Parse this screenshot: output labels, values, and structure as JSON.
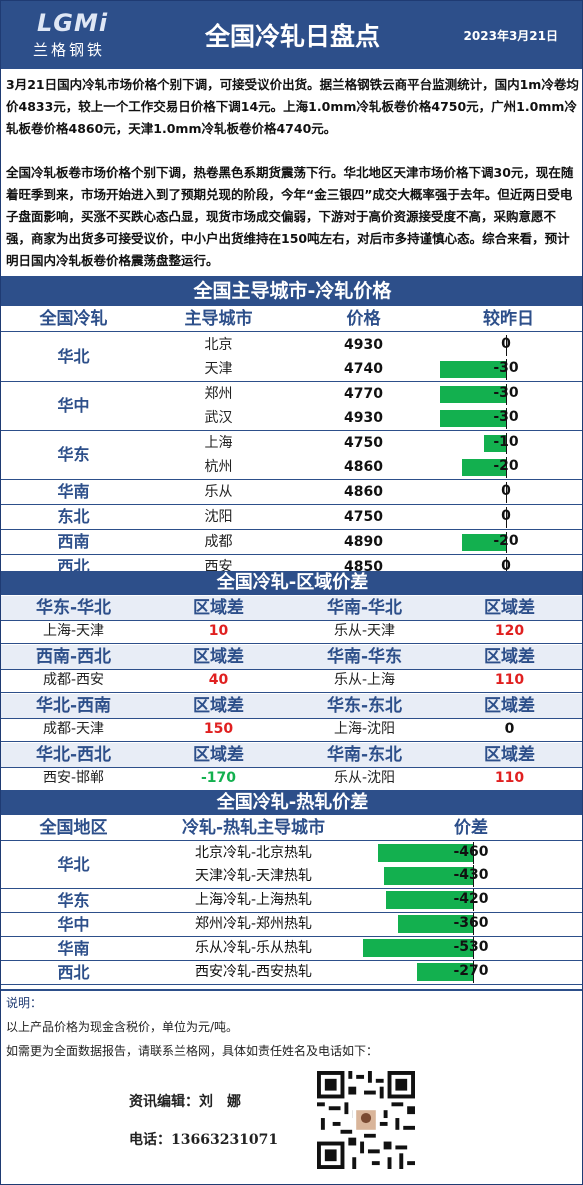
{
  "header": {
    "logo_text": "LGMi",
    "logo_cn": "兰格钢铁",
    "title": "全国冷轧日盘点",
    "date": "2023年3月21日"
  },
  "summary": {
    "p1": "3月21日国内冷轧市场价格个别下调，可接受议价出货。据兰格钢铁云商平台监测统计，国内1m冷卷均价4833元，较上一个工作交易日价格下调14元。上海1.0mm冷轧板卷价格4750元，广州1.0mm冷轧板卷价格4860元，天津1.0mm冷轧板卷价格4740元。",
    "p2": "全国冷轧板卷市场价格个别下调，热卷黑色系期货震荡下行。华北地区天津市场价格下调30元，现在随着旺季到来，市场开始进入到了预期兑现的阶段，今年“金三银四”成交大概率强于去年。但近两日受电子盘面影响，买涨不买跌心态凸显，现货市场成交偏弱，下游对于高价资源接受度不高，采购意愿不强，商家为出货多可接受议价，中小户出货维持在150吨左右，对后市多持谨慎心态。综合来看，预计明日国内冷轧板卷价格震荡盘整运行。"
  },
  "table1": {
    "title": "全国主导城市-冷轧价格",
    "headers": [
      "全国冷轧",
      "主导城市",
      "价格",
      "较昨日"
    ],
    "groups": [
      {
        "region": "华北",
        "rows": [
          {
            "city": "北京",
            "price": "4930",
            "change": "0",
            "change_value": 0
          },
          {
            "city": "天津",
            "price": "4740",
            "change": "-30",
            "change_value": -30
          }
        ]
      },
      {
        "region": "华中",
        "rows": [
          {
            "city": "郑州",
            "price": "4770",
            "change": "-30",
            "change_value": -30
          },
          {
            "city": "武汉",
            "price": "4930",
            "change": "-30",
            "change_value": -30
          }
        ]
      },
      {
        "region": "华东",
        "rows": [
          {
            "city": "上海",
            "price": "4750",
            "change": "-10",
            "change_value": -10
          },
          {
            "city": "杭州",
            "price": "4860",
            "change": "-20",
            "change_value": -20
          }
        ]
      },
      {
        "region": "华南",
        "rows": [
          {
            "city": "乐从",
            "price": "4860",
            "change": "0",
            "change_value": 0
          }
        ]
      },
      {
        "region": "东北",
        "rows": [
          {
            "city": "沈阳",
            "price": "4750",
            "change": "0",
            "change_value": 0
          }
        ]
      },
      {
        "region": "西南",
        "rows": [
          {
            "city": "成都",
            "price": "4890",
            "change": "-20",
            "change_value": -20
          }
        ]
      },
      {
        "region": "西北",
        "rows": [
          {
            "city": "西安",
            "price": "4850",
            "change": "0",
            "change_value": 0
          }
        ]
      }
    ]
  },
  "table2": {
    "title": "全国冷轧-区域价差",
    "diff_label": "区域差",
    "rows": [
      [
        {
          "name": "华东-华北",
          "pair": "上海-天津",
          "value": "10",
          "color": "#e02020"
        },
        {
          "name": "华南-华北",
          "pair": "乐从-天津",
          "value": "120",
          "color": "#e02020"
        }
      ],
      [
        {
          "name": "西南-西北",
          "pair": "成都-西安",
          "value": "40",
          "color": "#e02020"
        },
        {
          "name": "华南-华东",
          "pair": "乐从-上海",
          "value": "110",
          "color": "#e02020"
        }
      ],
      [
        {
          "name": "华北-西南",
          "pair": "成都-天津",
          "value": "150",
          "color": "#e02020"
        },
        {
          "name": "华东-东北",
          "pair": "上海-沈阳",
          "value": "0",
          "color": "#111111"
        }
      ],
      [
        {
          "name": "华北-西北",
          "pair": "西安-邯郸",
          "value": "-170",
          "color": "#13b04f"
        },
        {
          "name": "华南-东北",
          "pair": "乐从-沈阳",
          "value": "110",
          "color": "#e02020"
        }
      ]
    ]
  },
  "table3": {
    "title": "全国冷轧-热轧价差",
    "headers": [
      "全国地区",
      "冷轧-热轧主导城市",
      "价差"
    ],
    "groups": [
      {
        "region": "华北",
        "rows": [
          {
            "pair": "北京冷轧-北京热轧",
            "value": "-460",
            "num": -460
          },
          {
            "pair": "天津冷轧-天津热轧",
            "value": "-430",
            "num": -430
          }
        ]
      },
      {
        "region": "华东",
        "rows": [
          {
            "pair": "上海冷轧-上海热轧",
            "value": "-420",
            "num": -420
          }
        ]
      },
      {
        "region": "华中",
        "rows": [
          {
            "pair": "郑州冷轧-郑州热轧",
            "value": "-360",
            "num": -360
          }
        ]
      },
      {
        "region": "华南",
        "rows": [
          {
            "pair": "乐从冷轧-乐从热轧",
            "value": "-530",
            "num": -530
          }
        ]
      },
      {
        "region": "西北",
        "rows": [
          {
            "pair": "西安冷轧-西安热轧",
            "value": "-270",
            "num": -270
          }
        ]
      }
    ]
  },
  "notes": {
    "label": "说明：",
    "line1": "以上产品价格为现金含税价，单位为元/吨。",
    "line2": "如需更为全面数据报告，请联系兰格网，具体如责任姓名及电话如下："
  },
  "contact": {
    "editor": "资讯编辑：刘　娜",
    "phone": "电话：13663231071"
  },
  "colors": {
    "brand": "#2d4f8a",
    "up": "#e02020",
    "down": "#13b04f",
    "bar": "#13b04f"
  }
}
